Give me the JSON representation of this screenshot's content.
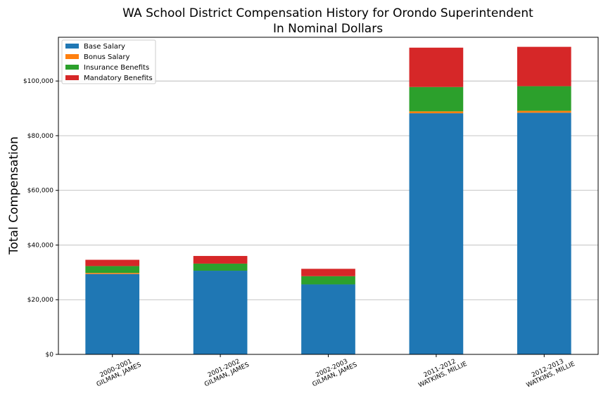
{
  "chart_data": {
    "type": "bar",
    "stacked": true,
    "title": "WA School District Compensation History for Orondo Superintendent",
    "subtitle": "In Nominal Dollars",
    "xlabel": "",
    "ylabel": "Total Compensation",
    "ylim": [
      0,
      116000
    ],
    "yticks": [
      0,
      20000,
      40000,
      60000,
      80000,
      100000
    ],
    "ytick_labels": [
      "$0",
      "$20,000",
      "$40,000",
      "$60,000",
      "$80,000",
      "$100,000"
    ],
    "grid": "horizontal",
    "legend_position": "top-left",
    "categories": [
      [
        "2000-2001",
        "GILMAN, JAMES"
      ],
      [
        "2001-2002",
        "GILMAN, JAMES"
      ],
      [
        "2002-2003",
        "GILMAN, JAMES"
      ],
      [
        "2011-2012",
        "WATKINS, MILLIE"
      ],
      [
        "2012-2013",
        "WATKINS, MILLIE"
      ]
    ],
    "series": [
      {
        "name": "Base Salary",
        "color": "#1f77b4",
        "values": [
          29400,
          30600,
          25600,
          88200,
          88400
        ]
      },
      {
        "name": "Bonus Salary",
        "color": "#ff7f0e",
        "values": [
          400,
          0,
          0,
          700,
          700
        ]
      },
      {
        "name": "Insurance Benefits",
        "color": "#2ca02c",
        "values": [
          2500,
          2600,
          3000,
          8900,
          9000
        ]
      },
      {
        "name": "Mandatory Benefits",
        "color": "#d62728",
        "values": [
          2300,
          2800,
          2700,
          14400,
          14400
        ]
      }
    ]
  }
}
